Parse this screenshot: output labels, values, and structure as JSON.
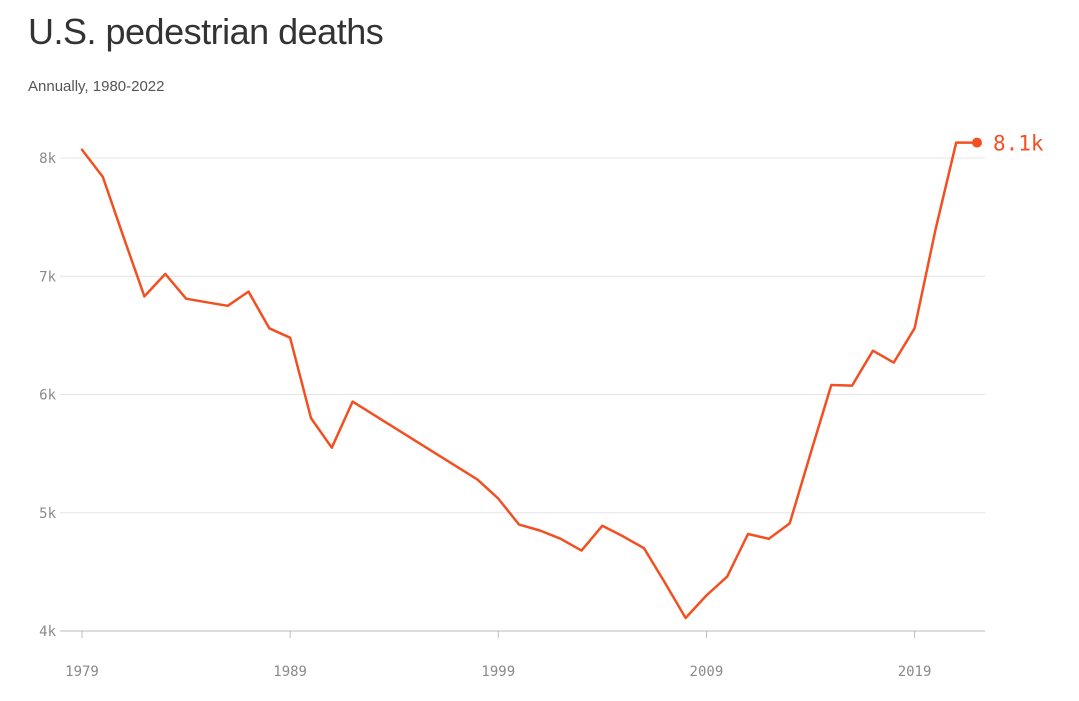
{
  "chart_data": {
    "type": "line",
    "title": "U.S. pedestrian deaths",
    "subtitle": "Annually, 1980-2022",
    "xlabel": "",
    "ylabel": "",
    "xlim": [
      1979,
      2022
    ],
    "ylim": [
      4000,
      8000
    ],
    "x_ticks": [
      1979,
      1989,
      1999,
      2009,
      2019
    ],
    "x_tick_labels": [
      "1979",
      "1989",
      "1999",
      "2009",
      "2019"
    ],
    "y_ticks": [
      4000,
      5000,
      6000,
      7000,
      8000
    ],
    "y_tick_labels": [
      "4k",
      "5k",
      "6k",
      "7k",
      "8k"
    ],
    "grid": true,
    "series": [
      {
        "name": "Pedestrian deaths",
        "color": "#f25022",
        "x": [
          1979,
          1980,
          1981,
          1982,
          1983,
          1984,
          1985,
          1986,
          1987,
          1988,
          1989,
          1990,
          1991,
          1992,
          1993,
          1994,
          1995,
          1996,
          1997,
          1998,
          1999,
          2000,
          2001,
          2002,
          2003,
          2004,
          2005,
          2006,
          2007,
          2008,
          2009,
          2010,
          2011,
          2012,
          2013,
          2014,
          2015,
          2016,
          2017,
          2018,
          2019,
          2020,
          2021,
          2022
        ],
        "values": [
          8070,
          7840,
          7330,
          6830,
          7020,
          6810,
          6780,
          6750,
          6870,
          6560,
          6480,
          5800,
          5550,
          5940,
          5830,
          5720,
          5610,
          5500,
          5390,
          5280,
          5120,
          4900,
          4850,
          4780,
          4680,
          4890,
          4800,
          4700,
          4410,
          4110,
          4300,
          4460,
          4820,
          4780,
          4910,
          5500,
          6080,
          6075,
          6370,
          6270,
          6560,
          7390,
          8130,
          8130
        ]
      }
    ],
    "end_label": "8.1k",
    "end_value": 8130
  },
  "colors": {
    "line": "#f25022",
    "grid": "#e4e4e4",
    "axis": "#bbbbbb",
    "tick_text": "#8a8a8a",
    "title": "#333333",
    "subtitle": "#555555"
  }
}
